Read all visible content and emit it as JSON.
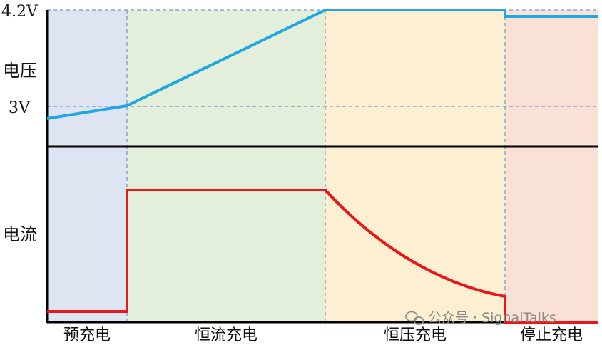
{
  "labels": {
    "voltage_max": "4.2V",
    "voltage_axis": "电压",
    "voltage_threshold": "3V",
    "current_axis": "电流"
  },
  "phases": [
    {
      "name": "预充电",
      "color": "#dfe4f2"
    },
    {
      "name": "恒流充电",
      "color": "#e3eedb"
    },
    {
      "name": "恒压充电",
      "color": "#fdf0d2"
    },
    {
      "name": "停止充电",
      "color": "#f9e1d6"
    }
  ],
  "curves": {
    "voltage_color": "#1ea7e1",
    "current_color": "#e81818"
  },
  "watermark": {
    "icon": "wechat-icon",
    "text": "公众号 · SignalTalks"
  }
}
